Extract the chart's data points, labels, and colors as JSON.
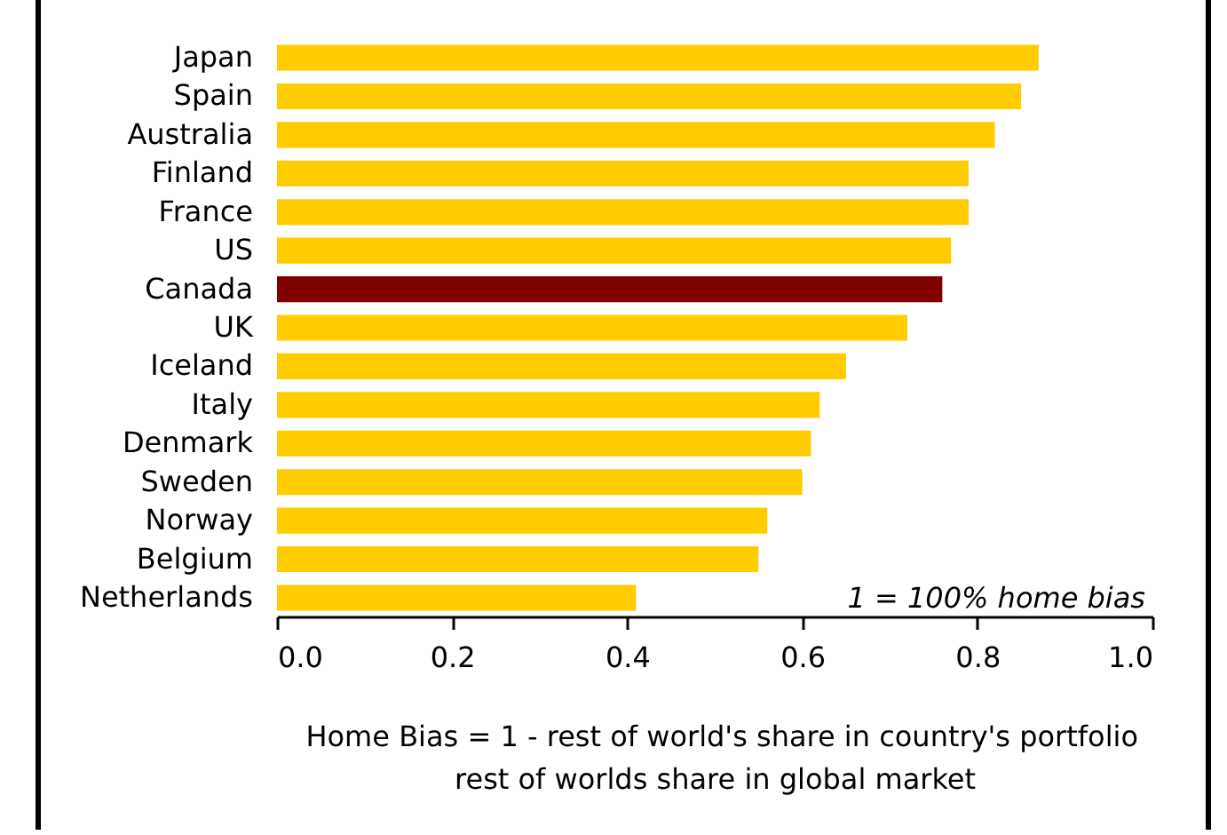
{
  "chart_data": {
    "type": "bar",
    "orientation": "horizontal",
    "categories": [
      "Japan",
      "Spain",
      "Australia",
      "Finland",
      "France",
      "US",
      "Canada",
      "UK",
      "Iceland",
      "Italy",
      "Denmark",
      "Sweden",
      "Norway",
      "Belgium",
      "Netherlands"
    ],
    "values": [
      0.87,
      0.85,
      0.82,
      0.79,
      0.79,
      0.77,
      0.76,
      0.72,
      0.65,
      0.62,
      0.61,
      0.6,
      0.56,
      0.55,
      0.41
    ],
    "colors": [
      "#ffcc00",
      "#ffcc00",
      "#ffcc00",
      "#ffcc00",
      "#ffcc00",
      "#ffcc00",
      "#800000",
      "#ffcc00",
      "#ffcc00",
      "#ffcc00",
      "#ffcc00",
      "#ffcc00",
      "#ffcc00",
      "#ffcc00",
      "#ffcc00"
    ],
    "xlim": [
      0,
      1
    ],
    "xticks": [
      {
        "value": 0,
        "label": "0.0"
      },
      {
        "value": 0.2,
        "label": "0.2"
      },
      {
        "value": 0.4,
        "label": "0.4"
      },
      {
        "value": 0.6,
        "label": "0.6"
      },
      {
        "value": 0.8,
        "label": "0.8"
      },
      {
        "value": 1,
        "label": "1.0"
      }
    ],
    "grid": false,
    "annotations": [
      "1 = 100% home bias",
      "Home Bias = 1 - rest of world's share in country's portfolio",
      "rest of worlds share in global market"
    ]
  }
}
